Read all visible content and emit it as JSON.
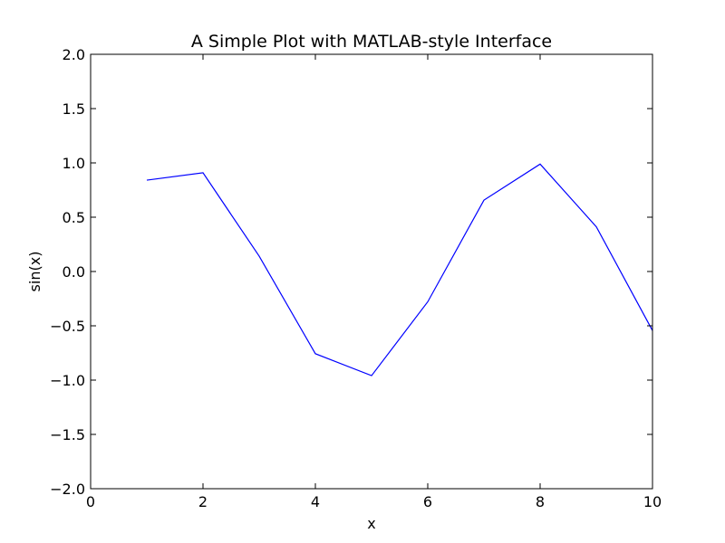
{
  "chart_data": {
    "type": "line",
    "title": "A Simple Plot with MATLAB-style Interface",
    "xlabel": "x",
    "ylabel": "sin(x)",
    "xlim": [
      0,
      10
    ],
    "ylim": [
      -2.0,
      2.0
    ],
    "grid": false,
    "x_ticks": [
      0,
      2,
      4,
      6,
      8,
      10
    ],
    "x_tick_labels": [
      "0",
      "2",
      "4",
      "6",
      "8",
      "10"
    ],
    "y_ticks": [
      -2.0,
      -1.5,
      -1.0,
      -0.5,
      0.0,
      0.5,
      1.0,
      1.5,
      2.0
    ],
    "y_tick_labels": [
      "−2.0",
      "−1.5",
      "−1.0",
      "−0.5",
      "0.0",
      "0.5",
      "1.0",
      "1.5",
      "2.0"
    ],
    "series": [
      {
        "color": "#0000ff",
        "x": [
          1,
          2,
          3,
          4,
          5,
          6,
          7,
          8,
          9,
          10
        ],
        "y": [
          0.841,
          0.909,
          0.141,
          -0.757,
          -0.959,
          -0.279,
          0.657,
          0.989,
          0.412,
          -0.544
        ]
      }
    ]
  }
}
